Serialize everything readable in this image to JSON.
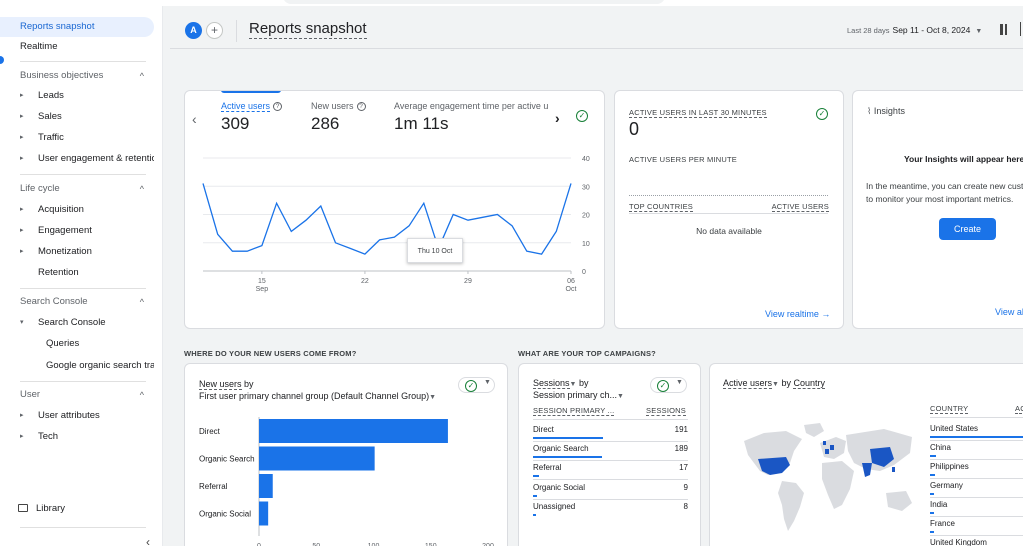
{
  "sidebar": {
    "items": [
      {
        "label": "Reports snapshot",
        "active": true
      },
      {
        "label": "Realtime"
      }
    ],
    "sections": [
      {
        "title": "Business objectives",
        "items": [
          "Leads",
          "Sales",
          "Traffic",
          "User engagement & retention"
        ]
      },
      {
        "title": "Life cycle",
        "items": [
          "Acquisition",
          "Engagement",
          "Monetization"
        ],
        "plain_item": "Retention"
      },
      {
        "title": "Search Console",
        "expanded_item": "Search Console",
        "sub_items": [
          "Queries",
          "Google organic search traf..."
        ]
      },
      {
        "title": "User",
        "items": [
          "User attributes",
          "Tech"
        ]
      }
    ],
    "library": "Library"
  },
  "header": {
    "avatar": "A",
    "title": "Reports snapshot",
    "date_label": "Last 28 days",
    "date_range": "Sep 11 - Oct 8, 2024"
  },
  "overview": {
    "metrics": [
      {
        "label": "Active users",
        "value": "309"
      },
      {
        "label": "New users",
        "value": "286"
      },
      {
        "label": "Average engagement time per active us",
        "value": "1m 11s"
      }
    ],
    "tooltip": "Thu 10 Oct",
    "chart_data": {
      "type": "line",
      "series": [
        {
          "values": [
            31,
            13,
            7,
            7,
            9,
            24,
            14,
            18,
            23,
            10,
            8,
            6,
            11,
            12,
            16,
            24,
            8,
            20,
            18,
            19,
            20,
            16,
            7,
            6,
            14,
            31
          ]
        }
      ],
      "x_ticks": [
        {
          "label": "15",
          "sublabel": "Sep",
          "index": 4
        },
        {
          "label": "22",
          "index": 11
        },
        {
          "label": "29",
          "index": 18
        },
        {
          "label": "06",
          "sublabel": "Oct",
          "index": 25
        }
      ],
      "y_ticks": [
        "0",
        "10",
        "20",
        "30",
        "40"
      ],
      "ylim": [
        0,
        40
      ],
      "colors": {
        "line": "#1a73e8"
      }
    }
  },
  "realtime": {
    "title": "ACTIVE USERS IN LAST 30 MINUTES",
    "value": "0",
    "per_minute_label": "ACTIVE USERS PER MINUTE",
    "col_countries": "TOP COUNTRIES",
    "col_users": "ACTIVE USERS",
    "no_data": "No data available",
    "link": "View realtime"
  },
  "insights": {
    "header": "Insights",
    "title": "Your Insights will appear here so",
    "body_1": "In the meantime, you can create new cust",
    "body_2": "to monitor your most important metrics.",
    "button": "Create",
    "link": "View all"
  },
  "sections": {
    "new_users_question": "WHERE DO YOUR NEW USERS COME FROM?",
    "campaigns_question": "WHAT ARE YOUR TOP CAMPAIGNS?"
  },
  "new_users_card": {
    "title_metric": "New users",
    "title_by": " by",
    "title_dimension": "First user primary channel group (Default Channel Group)",
    "chart_data": {
      "type": "bar",
      "orientation": "horizontal",
      "categories": [
        "Direct",
        "Organic Search",
        "Referral",
        "Organic Social"
      ],
      "values": [
        165,
        101,
        12,
        8
      ],
      "x_ticks": [
        "0",
        "50",
        "100",
        "150",
        "200"
      ],
      "xlim": [
        0,
        200
      ],
      "colors": {
        "bar": "#1a73e8"
      }
    }
  },
  "campaigns_card": {
    "title_metric": "Sessions",
    "title_by": " by",
    "title_dimension": "Session primary ch...",
    "col_channel": "SESSION PRIMARY ...",
    "col_sessions": "SESSIONS",
    "rows": [
      {
        "name": "Direct",
        "value": "191",
        "share": 1.0
      },
      {
        "name": "Organic Search",
        "value": "189",
        "share": 0.99
      },
      {
        "name": "Referral",
        "value": "17",
        "share": 0.09
      },
      {
        "name": "Organic Social",
        "value": "9",
        "share": 0.05
      },
      {
        "name": "Unassigned",
        "value": "8",
        "share": 0.04
      }
    ]
  },
  "country_card": {
    "title_metric": "Active users",
    "title_by": " by ",
    "title_dimension": "Country",
    "col_country": "COUNTRY",
    "col_users": "AC",
    "rows": [
      {
        "name": "United States",
        "share": 1.0
      },
      {
        "name": "China",
        "share": 0.06
      },
      {
        "name": "Philippines",
        "share": 0.05
      },
      {
        "name": "Germany",
        "share": 0.04
      },
      {
        "name": "India",
        "share": 0.04
      },
      {
        "name": "France",
        "share": 0.03
      },
      {
        "name": "United Kingdom",
        "share": 0.03
      }
    ],
    "colors": {
      "highlight": "#1a56c4",
      "land": "#dadce0"
    }
  }
}
